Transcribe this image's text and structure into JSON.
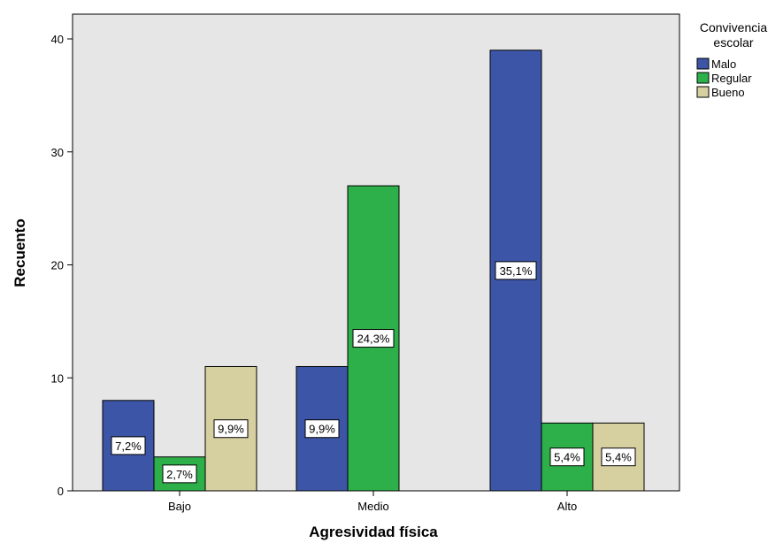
{
  "chart_data": {
    "type": "bar",
    "xlabel": "Agresividad física",
    "ylabel": "Recuento",
    "ylim": [
      0,
      40
    ],
    "yticks": [
      0,
      10,
      20,
      30,
      40
    ],
    "categories": [
      "Bajo",
      "Medio",
      "Alto"
    ],
    "legend": {
      "title": "Convivencia escolar",
      "title_lines": [
        "Convivencia",
        "escolar"
      ],
      "placement": "top-right outside plot"
    },
    "series": [
      {
        "name": "Malo",
        "color": "#3d55a7",
        "values": [
          8,
          11,
          39
        ],
        "labels": [
          "7,2%",
          "9,9%",
          "35,1%"
        ]
      },
      {
        "name": "Regular",
        "color": "#2db04a",
        "values": [
          3,
          27,
          6
        ],
        "labels": [
          "2,7%",
          "24,3%",
          "5,4%"
        ]
      },
      {
        "name": "Bueno",
        "color": "#d6d0a1",
        "values": [
          11,
          null,
          6
        ],
        "labels": [
          "9,9%",
          null,
          "5,4%"
        ]
      }
    ],
    "plot_background": "#e5e5e5",
    "grid": false
  }
}
